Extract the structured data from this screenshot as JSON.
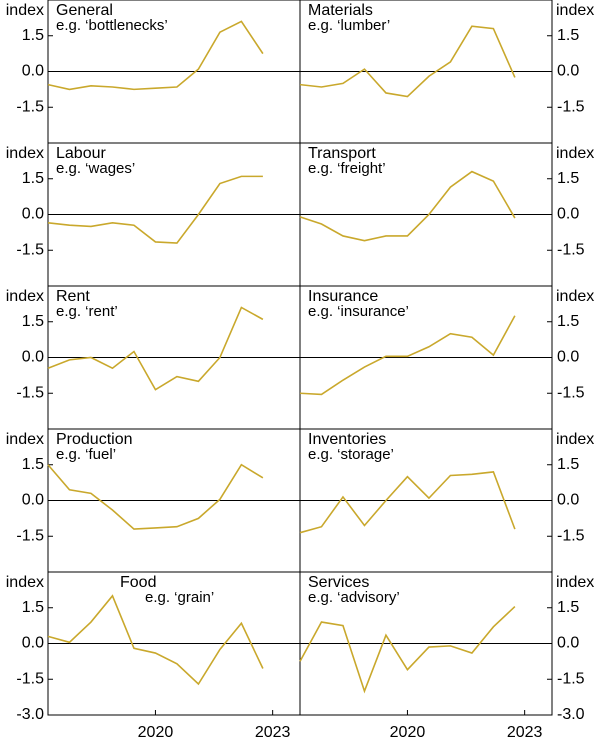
{
  "chart_data": [
    {
      "type": "line",
      "title": "General",
      "subtitle": "e.g. ‘bottlenecks’",
      "ylabel": "index",
      "color": "#c9a82c",
      "x": [
        2017.25,
        2017.8,
        2018.35,
        2018.9,
        2019.45,
        2020.0,
        2020.55,
        2021.1,
        2021.65,
        2022.2,
        2022.75
      ],
      "values": [
        -0.55,
        -0.75,
        -0.6,
        -0.65,
        -0.75,
        -0.7,
        -0.65,
        0.1,
        1.65,
        2.1,
        0.75
      ],
      "xlim": [
        2017.25,
        2023.7
      ],
      "ylim": [
        -3,
        3
      ],
      "yticks": [
        1.5,
        {
          "value": 0,
          "label": "0.0"
        },
        -1.5
      ]
    },
    {
      "type": "line",
      "title": "Materials",
      "subtitle": "e.g. ‘lumber’",
      "ylabel": "index",
      "color": "#c9a82c",
      "x": [
        2017.25,
        2017.8,
        2018.35,
        2018.9,
        2019.45,
        2020.0,
        2020.55,
        2021.1,
        2021.65,
        2022.2,
        2022.75
      ],
      "values": [
        -0.55,
        -0.65,
        -0.5,
        0.1,
        -0.9,
        -1.05,
        -0.2,
        0.4,
        1.9,
        1.8,
        -0.25
      ],
      "xlim": [
        2017.25,
        2023.7
      ],
      "ylim": [
        -3,
        3
      ],
      "yticks": [
        1.5,
        {
          "value": 0,
          "label": "0.0"
        },
        -1.5
      ]
    },
    {
      "type": "line",
      "title": "Labour",
      "subtitle": "e.g. ‘wages’",
      "ylabel": "index",
      "color": "#c9a82c",
      "x": [
        2017.25,
        2017.8,
        2018.35,
        2018.9,
        2019.45,
        2020.0,
        2020.55,
        2021.1,
        2021.65,
        2022.2,
        2022.75
      ],
      "values": [
        -0.35,
        -0.45,
        -0.5,
        -0.35,
        -0.45,
        -1.15,
        -1.2,
        0,
        1.3,
        1.6,
        1.6
      ],
      "xlim": [
        2017.25,
        2023.7
      ],
      "ylim": [
        -3,
        3
      ],
      "yticks": [
        1.5,
        {
          "value": 0,
          "label": "0.0"
        },
        -1.5
      ]
    },
    {
      "type": "line",
      "title": "Transport",
      "subtitle": "e.g. ‘freight’",
      "ylabel": "index",
      "color": "#c9a82c",
      "x": [
        2017.25,
        2017.8,
        2018.35,
        2018.9,
        2019.45,
        2020.0,
        2020.55,
        2021.1,
        2021.65,
        2022.2,
        2022.75
      ],
      "values": [
        -0.1,
        -0.4,
        -0.9,
        -1.1,
        -0.9,
        -0.9,
        0,
        1.15,
        1.8,
        1.4,
        -0.15
      ],
      "xlim": [
        2017.25,
        2023.7
      ],
      "ylim": [
        -3,
        3
      ],
      "yticks": [
        1.5,
        {
          "value": 0,
          "label": "0.0"
        },
        -1.5
      ]
    },
    {
      "type": "line",
      "title": "Rent",
      "subtitle": "e.g. ‘rent’",
      "ylabel": "index",
      "color": "#c9a82c",
      "x": [
        2017.25,
        2017.8,
        2018.35,
        2018.9,
        2019.45,
        2020.0,
        2020.55,
        2021.1,
        2021.65,
        2022.2,
        2022.75
      ],
      "values": [
        -0.45,
        -0.1,
        0,
        -0.45,
        0.25,
        -1.35,
        -0.8,
        -1,
        0,
        2.1,
        1.6
      ],
      "xlim": [
        2017.25,
        2023.7
      ],
      "ylim": [
        -3,
        3
      ],
      "yticks": [
        1.5,
        {
          "value": 0,
          "label": "0.0"
        },
        -1.5
      ]
    },
    {
      "type": "line",
      "title": "Insurance",
      "subtitle": "e.g. ‘insurance’",
      "ylabel": "index",
      "color": "#c9a82c",
      "x": [
        2017.25,
        2017.8,
        2018.35,
        2018.9,
        2019.45,
        2020.0,
        2020.55,
        2021.1,
        2021.65,
        2022.2,
        2022.75
      ],
      "values": [
        -1.5,
        -1.55,
        -0.95,
        -0.4,
        0.05,
        0.05,
        0.45,
        1,
        0.85,
        0.1,
        1.75
      ],
      "xlim": [
        2017.25,
        2023.7
      ],
      "ylim": [
        -3,
        3
      ],
      "yticks": [
        1.5,
        {
          "value": 0,
          "label": "0.0"
        },
        -1.5
      ]
    },
    {
      "type": "line",
      "title": "Production",
      "subtitle": "e.g. ‘fuel’",
      "ylabel": "index",
      "color": "#c9a82c",
      "x": [
        2017.25,
        2017.8,
        2018.35,
        2018.9,
        2019.45,
        2020.0,
        2020.55,
        2021.1,
        2021.65,
        2022.2,
        2022.75
      ],
      "values": [
        1.5,
        0.45,
        0.3,
        -0.4,
        -1.2,
        -1.15,
        -1.1,
        -0.75,
        0.05,
        1.5,
        0.95
      ],
      "xlim": [
        2017.25,
        2023.7
      ],
      "ylim": [
        -3,
        3
      ],
      "yticks": [
        1.5,
        {
          "value": 0,
          "label": "0.0"
        },
        -1.5
      ]
    },
    {
      "type": "line",
      "title": "Inventories",
      "subtitle": "e.g. ‘storage’",
      "ylabel": "index",
      "color": "#c9a82c",
      "x": [
        2017.25,
        2017.8,
        2018.35,
        2018.9,
        2019.45,
        2020.0,
        2020.55,
        2021.1,
        2021.65,
        2022.2,
        2022.75
      ],
      "values": [
        -1.35,
        -1.1,
        0.15,
        -1.05,
        0,
        1,
        0.1,
        1.05,
        1.1,
        1.2,
        -1.2
      ],
      "xlim": [
        2017.25,
        2023.7
      ],
      "ylim": [
        -3,
        3
      ],
      "yticks": [
        1.5,
        {
          "value": 0,
          "label": "0.0"
        },
        -1.5
      ]
    },
    {
      "type": "line",
      "title": "Food",
      "subtitle": "e.g. ‘grain’",
      "ylabel": "index",
      "color": "#c9a82c",
      "x": [
        2017.25,
        2017.8,
        2018.35,
        2018.9,
        2019.45,
        2020.0,
        2020.55,
        2021.1,
        2021.65,
        2022.2,
        2022.75
      ],
      "values": [
        0.3,
        0.05,
        0.9,
        2,
        -0.2,
        -0.4,
        -0.85,
        -1.7,
        -0.25,
        0.85,
        -1.05
      ],
      "xlim": [
        2017.25,
        2023.7
      ],
      "ylim": [
        -3,
        3
      ],
      "yticks": [
        1.5,
        {
          "value": 0,
          "label": "0.0"
        },
        -1.5,
        {
          "value": -3,
          "label": "-3.0"
        }
      ],
      "xticks": [
        2020,
        2023
      ]
    },
    {
      "type": "line",
      "title": "Services",
      "subtitle": "e.g. ‘advisory’",
      "ylabel": "index",
      "color": "#c9a82c",
      "x": [
        2017.25,
        2017.8,
        2018.35,
        2018.9,
        2019.45,
        2020.0,
        2020.55,
        2021.1,
        2021.65,
        2022.2,
        2022.75
      ],
      "values": [
        -0.75,
        0.9,
        0.75,
        -2,
        0.35,
        -1.1,
        -0.15,
        -0.1,
        -0.4,
        0.7,
        1.55
      ],
      "xlim": [
        2017.25,
        2023.7
      ],
      "ylim": [
        -3,
        3
      ],
      "yticks": [
        1.5,
        {
          "value": 0,
          "label": "0.0"
        },
        -1.5,
        {
          "value": -3,
          "label": "-3.0"
        }
      ],
      "xticks": [
        2020,
        2023
      ]
    }
  ]
}
